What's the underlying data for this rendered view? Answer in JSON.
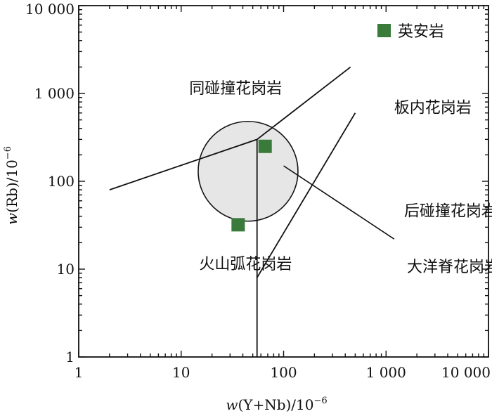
{
  "chart_data": {
    "type": "scatter",
    "x_scale": "log",
    "y_scale": "log",
    "xlim": [
      1,
      10000
    ],
    "ylim": [
      1,
      10000
    ],
    "x_ticks": [
      {
        "value": 1,
        "label": "1"
      },
      {
        "value": 10,
        "label": "10"
      },
      {
        "value": 100,
        "label": "100"
      },
      {
        "value": 1000,
        "label": "1 000"
      },
      {
        "value": 10000,
        "label": "10 000"
      }
    ],
    "y_ticks": [
      {
        "value": 1,
        "label": "1"
      },
      {
        "value": 10,
        "label": "10"
      },
      {
        "value": 100,
        "label": "100"
      },
      {
        "value": 1000,
        "label": "1 000"
      },
      {
        "value": 10000,
        "label": "10 000"
      }
    ],
    "xlabel": {
      "pre": "w",
      "mid": "(Y+Nb)/10",
      "sup": "−6"
    },
    "ylabel": {
      "pre": "w",
      "mid": "(Rb)/10",
      "sup": "−6"
    },
    "legend": {
      "label": "英安岩",
      "color": "#3a7a3a",
      "placement": "top-right"
    },
    "series": [
      {
        "name": "英安岩",
        "color": "#3a7a3a",
        "marker": "square",
        "points": [
          {
            "x": 66,
            "y": 250
          },
          {
            "x": 36,
            "y": 32
          }
        ]
      }
    ],
    "boundaries": [
      {
        "points": [
          [
            2,
            80
          ],
          [
            55,
            300
          ],
          [
            450,
            2000
          ]
        ]
      },
      {
        "points": [
          [
            55,
            1
          ],
          [
            55,
            300
          ]
        ]
      },
      {
        "points": [
          [
            55,
            8
          ],
          [
            500,
            600
          ]
        ]
      }
    ],
    "circle": {
      "center": {
        "x": 45,
        "y": 130
      },
      "fill": "#e6e6e6",
      "label_leader": {
        "from": {
          "x": 100,
          "y": 150
        },
        "to": {
          "x": 1200,
          "y": 22
        }
      }
    },
    "regions": [
      {
        "label": "同碰撞花岗岩",
        "x": 12,
        "y": 1000
      },
      {
        "label": "板内花岗岩",
        "x": 1200,
        "y": 600
      },
      {
        "label": "后碰撞花岗岩",
        "x": 1500,
        "y": 40
      },
      {
        "label": "火山弧花岗岩",
        "x": 15,
        "y": 10
      },
      {
        "label": "大洋脊花岗岩",
        "x": 1600,
        "y": 9.3
      }
    ]
  }
}
